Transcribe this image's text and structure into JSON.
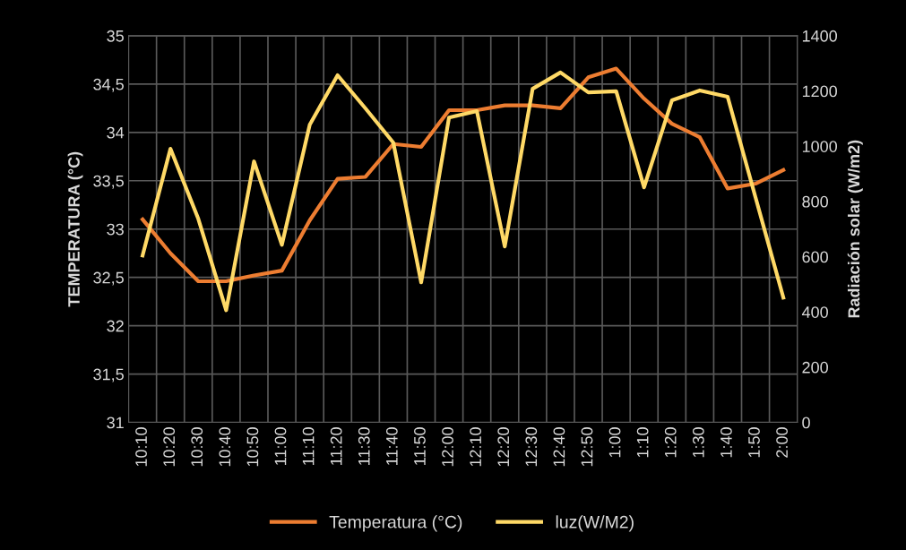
{
  "chart_data": {
    "type": "line",
    "categories": [
      "10:10",
      "10:20",
      "10:30",
      "10:40",
      "10:50",
      "11:00",
      "11:10",
      "11:20",
      "11:30",
      "11:40",
      "11:50",
      "12:00",
      "12:10",
      "12:20",
      "12:30",
      "12:40",
      "12:50",
      "1:00",
      "1:10",
      "1:20",
      "1:30",
      "1:40",
      "1:50",
      "2:00"
    ],
    "series": [
      {
        "name": "Temperatura (°C)",
        "color": "#ed7d31",
        "values": [
          33.1,
          32.75,
          32.46,
          32.46,
          32.52,
          32.57,
          33.09,
          33.52,
          33.54,
          33.88,
          33.85,
          34.23,
          34.23,
          34.28,
          34.28,
          34.25,
          34.57,
          34.66,
          34.35,
          34.09,
          33.95,
          33.42,
          33.47,
          33.61
        ]
      },
      {
        "name": "luz(W/M2)",
        "color": "#ffd966",
        "axis": "y2",
        "values": [
          604,
          991,
          737,
          406,
          945,
          643,
          1078,
          1257,
          1137,
          1013,
          507,
          1104,
          1127,
          637,
          1208,
          1267,
          1195,
          1199,
          851,
          1166,
          1202,
          1179,
          815,
          452
        ]
      }
    ],
    "ylabel": "TEMPERATURA (°C)",
    "y2label": "Radiación solar (W/m2)",
    "ylim": [
      31,
      35
    ],
    "yticks": [
      {
        "value": 31,
        "label": "31"
      },
      {
        "value": 31.5,
        "label": "31,5"
      },
      {
        "value": 32,
        "label": "32"
      },
      {
        "value": 32.5,
        "label": "32,5"
      },
      {
        "value": 33,
        "label": "33"
      },
      {
        "value": 33.5,
        "label": "33,5"
      },
      {
        "value": 34,
        "label": "34"
      },
      {
        "value": 34.5,
        "label": "34,5"
      },
      {
        "value": 35,
        "label": "35"
      }
    ],
    "y2lim": [
      0,
      1400
    ],
    "y2ticks": [
      0,
      200,
      400,
      600,
      800,
      1000,
      1200,
      1400
    ],
    "grid": true,
    "legend": "bottom",
    "marker": "none",
    "line_style": "solid"
  }
}
